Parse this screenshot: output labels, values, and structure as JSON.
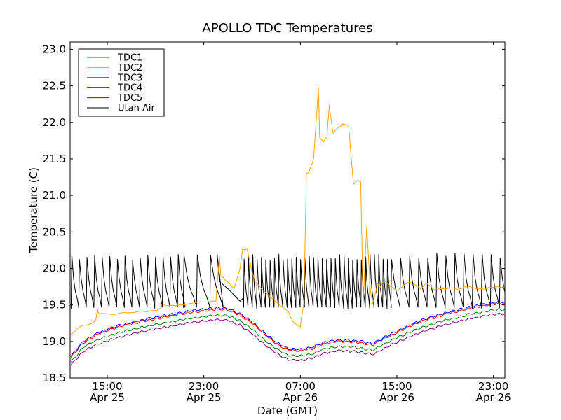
{
  "chart_data": {
    "type": "line",
    "title": "APOLLO TDC Temperatures",
    "xlabel": "Date (GMT)",
    "ylabel": "Temperature (C)",
    "x_unit": "hours since Apr 25 12:00 GMT",
    "xlim": [
      -0.08,
      35.95
    ],
    "ylim": [
      18.5,
      23.1
    ],
    "grid": false,
    "legend_position": "top-left",
    "yticks": [
      18.5,
      19.0,
      19.5,
      20.0,
      20.5,
      21.0,
      21.5,
      22.0,
      22.5,
      23.0
    ],
    "ytick_labels": [
      "18.5",
      "19.0",
      "19.5",
      "20.0",
      "20.5",
      "21.0",
      "21.5",
      "22.0",
      "22.5",
      "23.0"
    ],
    "xticks": [
      3,
      11,
      19,
      27,
      35
    ],
    "xtick_labels": [
      [
        "15:00",
        "Apr 25"
      ],
      [
        "23:00",
        "Apr 25"
      ],
      [
        "07:00",
        "Apr 26"
      ],
      [
        "15:00",
        "Apr 26"
      ],
      [
        "23:00",
        "Apr 26"
      ]
    ],
    "series": [
      {
        "name": "TDC1",
        "color": "#ff0000",
        "x": [
          0,
          1,
          2,
          3,
          4,
          5,
          6,
          7,
          8,
          9,
          10,
          11,
          12,
          13,
          14,
          15,
          16,
          17,
          18,
          19,
          20,
          21,
          22,
          23,
          24,
          25,
          26,
          27,
          28,
          29,
          30,
          31,
          32,
          33,
          34,
          35,
          36
        ],
        "y": [
          18.78,
          18.98,
          19.08,
          19.15,
          19.2,
          19.24,
          19.28,
          19.31,
          19.34,
          19.37,
          19.4,
          19.42,
          19.44,
          19.43,
          19.36,
          19.25,
          19.1,
          18.97,
          18.88,
          18.87,
          18.9,
          18.97,
          19.0,
          19.0,
          18.98,
          18.95,
          19.04,
          19.12,
          19.2,
          19.27,
          19.32,
          19.37,
          19.41,
          19.45,
          19.48,
          19.51,
          19.52
        ]
      },
      {
        "name": "TDC2",
        "color": "#ffa500",
        "x": [
          0,
          0.5,
          1,
          2,
          2.2,
          2.3,
          3,
          4,
          5,
          6,
          7,
          7.4,
          7.5,
          8,
          9,
          10,
          11,
          12,
          12.3,
          12.4,
          13,
          13.5,
          14,
          14.2,
          14.6,
          15,
          15.3,
          16,
          17,
          18,
          18.5,
          19,
          19.3,
          19.5,
          19.8,
          20.1,
          20.5,
          20.6,
          20.9,
          21.2,
          21.4,
          21.7,
          22,
          22.5,
          23,
          23.3,
          23.4,
          23.7,
          24.0,
          24.2,
          24.5,
          24.8,
          25.0,
          25.4,
          25.6,
          25.8,
          26,
          26.5,
          27,
          28,
          29,
          29.5,
          30,
          31,
          32,
          33,
          34,
          35,
          36
        ],
        "y": [
          19.1,
          19.17,
          19.22,
          19.27,
          19.43,
          19.37,
          19.37,
          19.38,
          19.4,
          19.41,
          19.42,
          19.45,
          19.5,
          19.48,
          19.5,
          19.52,
          19.54,
          19.56,
          20.17,
          19.9,
          19.82,
          19.72,
          20.0,
          20.25,
          20.25,
          19.95,
          19.8,
          19.7,
          19.55,
          19.4,
          19.25,
          19.2,
          19.55,
          21.3,
          21.35,
          21.5,
          22.48,
          21.8,
          21.73,
          21.8,
          22.25,
          21.85,
          21.9,
          21.97,
          21.95,
          21.35,
          21.15,
          21.2,
          21.18,
          19.5,
          20.58,
          19.7,
          19.5,
          19.8,
          19.72,
          19.8,
          19.82,
          19.75,
          19.7,
          19.82,
          19.72,
          19.8,
          19.72,
          19.73,
          19.72,
          19.75,
          19.72,
          19.74,
          19.75
        ]
      },
      {
        "name": "TDC3",
        "color": "#008000",
        "x": [
          0,
          1,
          2,
          3,
          4,
          5,
          6,
          7,
          8,
          9,
          10,
          11,
          12,
          13,
          14,
          15,
          16,
          17,
          18,
          19,
          20,
          21,
          22,
          23,
          24,
          25,
          26,
          27,
          28,
          29,
          30,
          31,
          32,
          33,
          34,
          35,
          36
        ],
        "y": [
          18.72,
          18.92,
          19.01,
          19.07,
          19.12,
          19.16,
          19.2,
          19.23,
          19.26,
          19.29,
          19.32,
          19.34,
          19.36,
          19.35,
          19.28,
          19.17,
          19.02,
          18.9,
          18.81,
          18.8,
          18.83,
          18.9,
          18.93,
          18.93,
          18.91,
          18.88,
          18.97,
          19.05,
          19.12,
          19.19,
          19.24,
          19.29,
          19.33,
          19.37,
          19.4,
          19.43,
          19.44
        ]
      },
      {
        "name": "TDC4",
        "color": "#0000ff",
        "x": [
          0,
          1,
          2,
          3,
          4,
          5,
          6,
          7,
          8,
          9,
          10,
          11,
          12,
          13,
          14,
          15,
          16,
          17,
          18,
          19,
          20,
          21,
          22,
          23,
          24,
          25,
          26,
          27,
          28,
          29,
          30,
          31,
          32,
          33,
          34,
          35,
          36
        ],
        "y": [
          18.8,
          19.0,
          19.1,
          19.17,
          19.22,
          19.26,
          19.3,
          19.33,
          19.36,
          19.39,
          19.42,
          19.44,
          19.46,
          19.45,
          19.38,
          19.27,
          19.12,
          18.99,
          18.9,
          18.89,
          18.92,
          18.99,
          19.02,
          19.02,
          19.0,
          18.97,
          19.06,
          19.14,
          19.22,
          19.29,
          19.34,
          19.39,
          19.43,
          19.47,
          19.5,
          19.53,
          19.54
        ]
      },
      {
        "name": "TDC5",
        "color": "#800080",
        "x": [
          0,
          1,
          2,
          3,
          4,
          5,
          6,
          7,
          8,
          9,
          10,
          11,
          12,
          13,
          14,
          15,
          16,
          17,
          18,
          19,
          20,
          21,
          22,
          23,
          24,
          25,
          26,
          27,
          28,
          29,
          30,
          31,
          32,
          33,
          34,
          35,
          36
        ],
        "y": [
          18.68,
          18.86,
          18.95,
          19.01,
          19.06,
          19.1,
          19.14,
          19.17,
          19.2,
          19.23,
          19.26,
          19.28,
          19.3,
          19.29,
          19.22,
          19.11,
          18.96,
          18.84,
          18.75,
          18.74,
          18.77,
          18.84,
          18.87,
          18.87,
          18.85,
          18.82,
          18.91,
          18.99,
          19.06,
          19.13,
          19.18,
          19.23,
          19.27,
          19.31,
          19.34,
          19.37,
          19.38
        ]
      },
      {
        "name": "Utah Air",
        "color": "#000000",
        "cycle_low": 19.47,
        "cycle_high": 20.15,
        "cycles": [
          {
            "start": 0,
            "end": 9.3,
            "period": 0.63,
            "high": 20.15
          },
          {
            "start": 9.3,
            "end": 12.1,
            "period": 1.1,
            "high": 20.2
          },
          {
            "start": 14.3,
            "end": 26.5,
            "period": 0.36,
            "high": 20.15
          },
          {
            "start": 26.5,
            "end": 35.95,
            "period": 0.75,
            "high": 20.17
          }
        ],
        "gap_segment": {
          "x": [
            12.1,
            12.3,
            13.0,
            14.0,
            14.3
          ],
          "y": [
            20.2,
            19.82,
            19.72,
            19.55,
            19.6
          ]
        }
      }
    ]
  }
}
